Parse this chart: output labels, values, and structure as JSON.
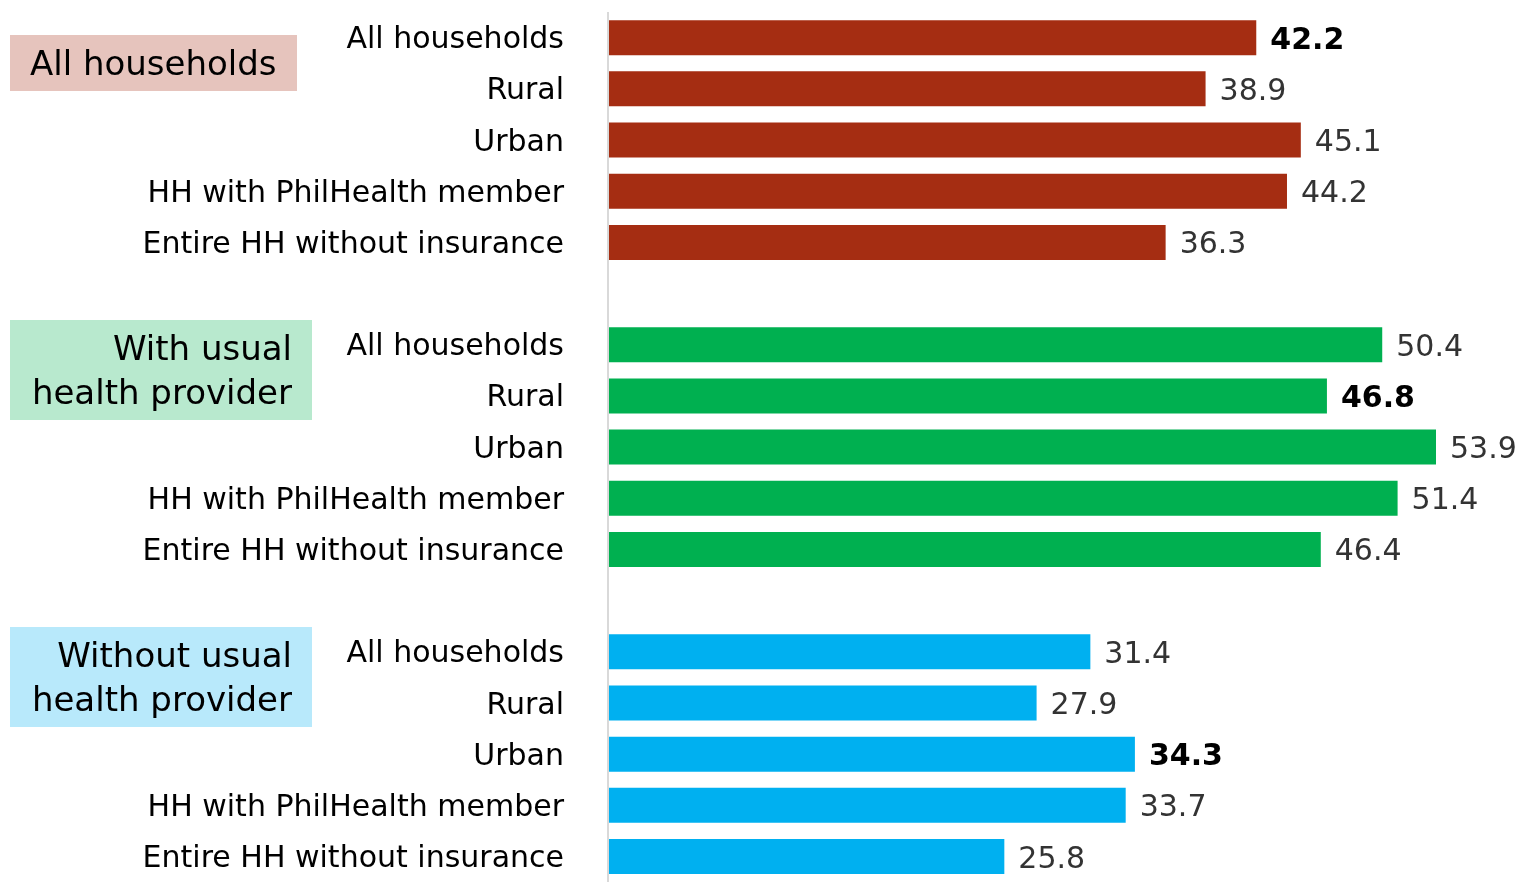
{
  "chart_data": {
    "type": "bar",
    "orientation": "horizontal",
    "data_labels": true,
    "categories": [
      "All households",
      "Rural",
      "Urban",
      "HH with PhilHealth member",
      "Entire HH without insurance",
      null,
      "All households",
      "Rural",
      "Urban",
      "HH with PhilHealth member",
      "Entire HH without insurance",
      null,
      "All households",
      "Rural",
      "Urban",
      "HH with PhilHealth member",
      "Entire HH without insurance"
    ],
    "values": [
      42.2,
      38.9,
      45.1,
      44.2,
      36.3,
      null,
      50.4,
      46.8,
      53.9,
      51.4,
      46.4,
      null,
      31.4,
      27.9,
      34.3,
      33.7,
      25.8
    ],
    "colors": [
      "#a52d12",
      "#a52d12",
      "#a52d12",
      "#a52d12",
      "#a52d12",
      null,
      "#00b050",
      "#00b050",
      "#00b050",
      "#00b050",
      "#00b050",
      null,
      "#00b0f0",
      "#00b0f0",
      "#00b0f0",
      "#00b0f0",
      "#00b0f0"
    ],
    "annotations": [
      "All households",
      "With usual health provider",
      "Without usual health provider"
    ]
  }
}
